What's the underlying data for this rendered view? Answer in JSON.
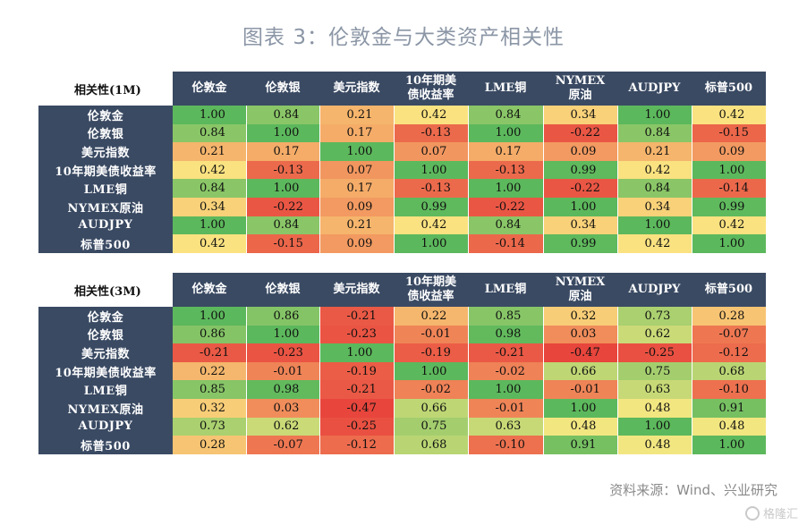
{
  "title": "图表 3：伦敦金与大类资产相关性",
  "source": "资料来源：Wind、兴业研究",
  "watermark": "格隆汇",
  "chart_data": {
    "type": "heatmap",
    "labels": [
      "伦敦金",
      "伦敦银",
      "美元指数",
      "10年期美债收益率",
      "LME铜",
      "NYMEX原油",
      "AUDJPY",
      "标普500"
    ],
    "column_labels": [
      "伦敦金",
      "伦敦银",
      "美元指数",
      "10年期美\n债收益率",
      "LME铜",
      "NYMEX\n原油",
      "AUDJPY",
      "标普500"
    ],
    "color_scale": {
      "low": "#e8453c",
      "mid": "#fbe983",
      "high": "#5cb85c"
    },
    "tables": [
      {
        "corner": "相关性(1M)",
        "values": [
          [
            1.0,
            0.84,
            0.21,
            0.42,
            0.84,
            0.34,
            1.0,
            0.42
          ],
          [
            0.84,
            1.0,
            0.17,
            -0.13,
            1.0,
            -0.22,
            0.84,
            -0.15
          ],
          [
            0.21,
            0.17,
            1.0,
            0.07,
            0.17,
            0.09,
            0.21,
            0.09
          ],
          [
            0.42,
            -0.13,
            0.07,
            1.0,
            -0.13,
            0.99,
            0.42,
            1.0
          ],
          [
            0.84,
            1.0,
            0.17,
            -0.13,
            1.0,
            -0.22,
            0.84,
            -0.14
          ],
          [
            0.34,
            -0.22,
            0.09,
            0.99,
            -0.22,
            1.0,
            0.34,
            0.99
          ],
          [
            1.0,
            0.84,
            0.21,
            0.42,
            0.84,
            0.34,
            1.0,
            0.42
          ],
          [
            0.42,
            -0.15,
            0.09,
            1.0,
            -0.14,
            0.99,
            0.42,
            1.0
          ]
        ]
      },
      {
        "corner": "相关性(3M)",
        "values": [
          [
            1.0,
            0.86,
            -0.21,
            0.22,
            0.85,
            0.32,
            0.73,
            0.28
          ],
          [
            0.86,
            1.0,
            -0.23,
            -0.01,
            0.98,
            0.03,
            0.62,
            -0.07
          ],
          [
            -0.21,
            -0.23,
            1.0,
            -0.19,
            -0.21,
            -0.47,
            -0.25,
            -0.12
          ],
          [
            0.22,
            -0.01,
            -0.19,
            1.0,
            -0.02,
            0.66,
            0.75,
            0.68
          ],
          [
            0.85,
            0.98,
            -0.21,
            -0.02,
            1.0,
            -0.01,
            0.63,
            -0.1
          ],
          [
            0.32,
            0.03,
            -0.47,
            0.66,
            -0.01,
            1.0,
            0.48,
            0.91
          ],
          [
            0.73,
            0.62,
            -0.25,
            0.75,
            0.63,
            0.48,
            1.0,
            0.48
          ],
          [
            0.28,
            -0.07,
            -0.12,
            0.68,
            -0.1,
            0.91,
            0.48,
            1.0
          ]
        ]
      }
    ]
  }
}
